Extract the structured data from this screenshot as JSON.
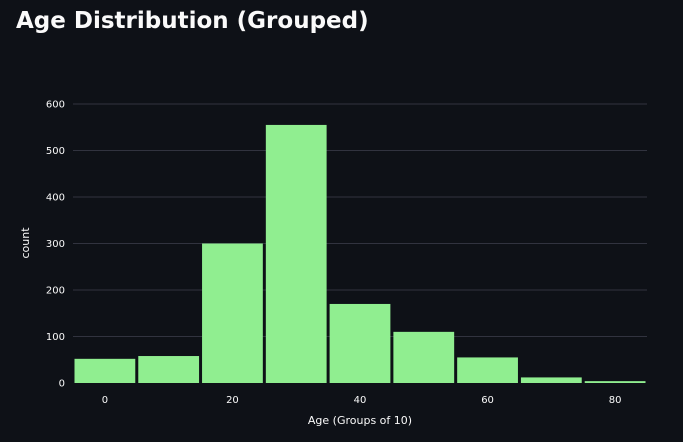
{
  "page": {
    "title": "Age Distribution (Grouped)"
  },
  "colors": {
    "background": "#0e1117",
    "bar": "#90ee90",
    "grid": "#31333f",
    "text": "#fafafa"
  },
  "chart_data": {
    "type": "bar",
    "title": "",
    "xlabel": "Age (Groups of 10)",
    "ylabel": "count",
    "x": [
      0,
      10,
      20,
      30,
      40,
      50,
      60,
      70,
      80
    ],
    "values": [
      52,
      58,
      300,
      555,
      170,
      110,
      55,
      12,
      4
    ],
    "xlim": [
      -5,
      85
    ],
    "ylim": [
      0,
      600
    ],
    "x_ticks": [
      0,
      20,
      40,
      60,
      80
    ],
    "y_ticks": [
      0,
      100,
      200,
      300,
      400,
      500,
      600
    ],
    "grid": true,
    "legend": "none"
  }
}
